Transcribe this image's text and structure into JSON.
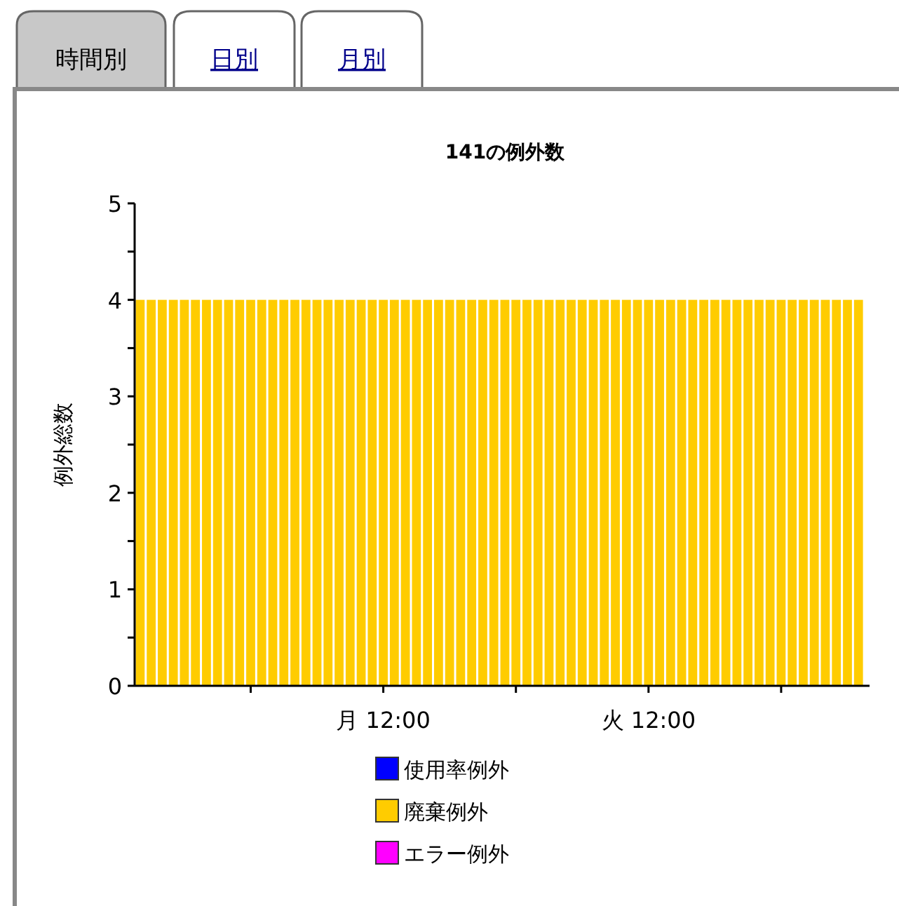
{
  "chart_data": {
    "type": "bar",
    "title": "141の例外数",
    "ylabel": "例外総数",
    "annotations": [
      "時間別",
      "日別",
      "月別"
    ],
    "categories": [
      null,
      null,
      null,
      null,
      null,
      null,
      null,
      null,
      null,
      null,
      null,
      null,
      null,
      null,
      null,
      null,
      null,
      null,
      null,
      null,
      null,
      null,
      "月 12:00",
      null,
      null,
      null,
      null,
      null,
      null,
      null,
      null,
      null,
      null,
      null,
      null,
      null,
      null,
      null,
      null,
      null,
      null,
      null,
      null,
      null,
      null,
      null,
      "火 12:00",
      null,
      null,
      null,
      null,
      null,
      null,
      null,
      null,
      null,
      null,
      null,
      null,
      null,
      null,
      null,
      null,
      null,
      null,
      null
    ],
    "series": [
      {
        "name": "使用率例外",
        "color": "#0000ff",
        "values": [
          0,
          0,
          0,
          0,
          0,
          0,
          0,
          0,
          0,
          0,
          0,
          0,
          0,
          0,
          0,
          0,
          0,
          0,
          0,
          0,
          0,
          0,
          0,
          0,
          0,
          0,
          0,
          0,
          0,
          0,
          0,
          0,
          0,
          0,
          0,
          0,
          0,
          0,
          0,
          0,
          0,
          0,
          0,
          0,
          0,
          0,
          0,
          0,
          0,
          0,
          0,
          0,
          0,
          0,
          0,
          0,
          0,
          0,
          0,
          0,
          0,
          0,
          0,
          0,
          0,
          0
        ]
      },
      {
        "name": "廃棄例外",
        "color": "#ffcc00",
        "values": [
          4,
          4,
          4,
          4,
          4,
          4,
          4,
          4,
          4,
          4,
          4,
          4,
          4,
          4,
          4,
          4,
          4,
          4,
          4,
          4,
          4,
          4,
          4,
          4,
          4,
          4,
          4,
          4,
          4,
          4,
          4,
          4,
          4,
          4,
          4,
          4,
          4,
          4,
          4,
          4,
          4,
          4,
          4,
          4,
          4,
          4,
          4,
          4,
          4,
          4,
          4,
          4,
          4,
          4,
          4,
          4,
          4,
          4,
          4,
          4,
          4,
          4,
          4,
          4,
          4,
          4
        ]
      },
      {
        "name": "エラー例外",
        "color": "#ff00ff",
        "values": [
          0,
          0,
          0,
          0,
          0,
          0,
          0,
          0,
          0,
          0,
          0,
          0,
          0,
          0,
          0,
          0,
          0,
          0,
          0,
          0,
          0,
          0,
          0,
          0,
          0,
          0,
          0,
          0,
          0,
          0,
          0,
          0,
          0,
          0,
          0,
          0,
          0,
          0,
          0,
          0,
          0,
          0,
          0,
          0,
          0,
          0,
          0,
          0,
          0,
          0,
          0,
          0,
          0,
          0,
          0,
          0,
          0,
          0,
          0,
          0,
          0,
          0,
          0,
          0,
          0,
          0
        ]
      }
    ],
    "ylim": [
      0,
      5
    ],
    "yticks": [
      0,
      {
        "value": 0.5,
        "label": null
      },
      1,
      {
        "value": 1.5,
        "label": null
      },
      2,
      {
        "value": 2.5,
        "label": null
      },
      3,
      {
        "value": 3.5,
        "label": null
      },
      4,
      {
        "value": 4.5,
        "label": null
      },
      5
    ],
    "grid": false,
    "legend": "bottom"
  }
}
